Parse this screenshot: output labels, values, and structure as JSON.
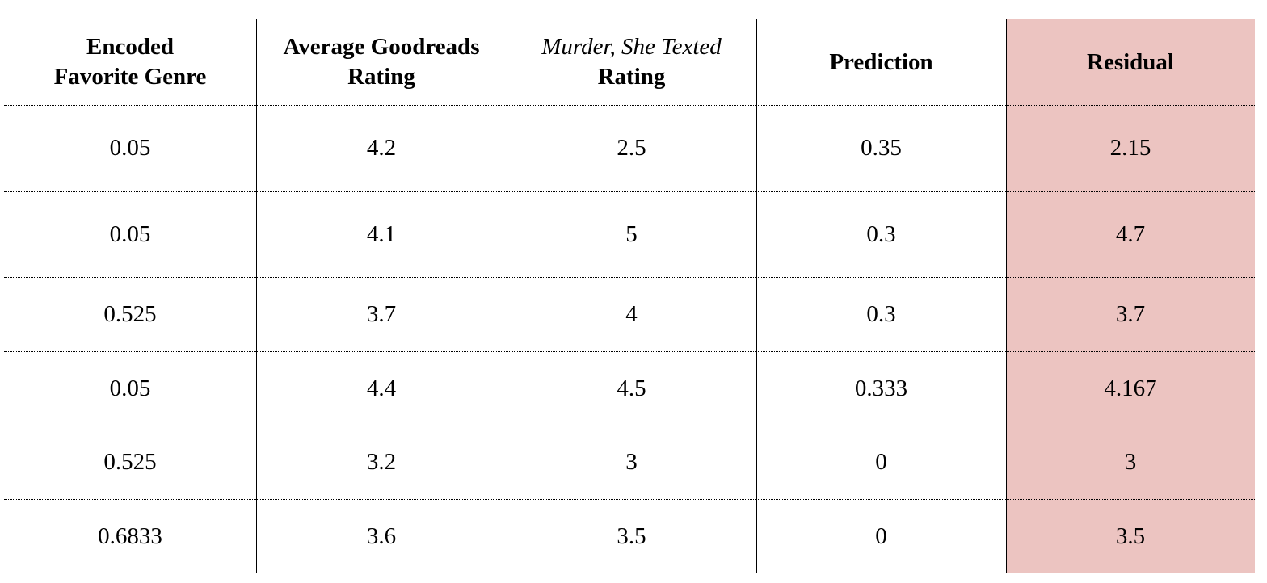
{
  "table": {
    "headers": [
      {
        "lines": [
          "Encoded",
          "Favorite Genre"
        ]
      },
      {
        "lines": [
          "Average Goodreads",
          "Rating"
        ]
      },
      {
        "lines": [
          "Murder, She Texted",
          "Rating"
        ],
        "italic_lines": [
          0
        ]
      },
      {
        "lines": [
          "Prediction"
        ]
      },
      {
        "lines": [
          "Residual"
        ]
      }
    ],
    "rows": [
      [
        "0.05",
        "4.2",
        "2.5",
        "0.35",
        "2.15"
      ],
      [
        "0.05",
        "4.1",
        "5",
        "0.3",
        "4.7"
      ],
      [
        "0.525",
        "3.7",
        "4",
        "0.3",
        "3.7"
      ],
      [
        "0.05",
        "4.4",
        "4.5",
        "0.333",
        "4.167"
      ],
      [
        "0.525",
        "3.2",
        "3",
        "0",
        "3"
      ],
      [
        "0.6833",
        "3.6",
        "3.5",
        "0",
        "3.5"
      ]
    ],
    "highlight_column": 4,
    "highlight_color": "#ecc4c1"
  }
}
